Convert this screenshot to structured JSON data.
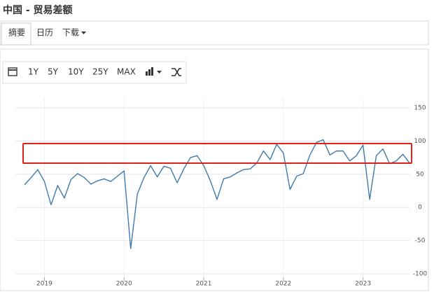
{
  "header": {
    "title": "中国 - 贸易差额"
  },
  "tabs": [
    "摘要",
    "日历",
    "下载"
  ],
  "toolbar": [
    "1Y",
    "5Y",
    "10Y",
    "25Y",
    "MAX"
  ],
  "chart_data": {
    "type": "line",
    "categories": [
      null,
      null,
      null,
      "2019",
      null,
      null,
      null,
      null,
      null,
      null,
      null,
      null,
      null,
      null,
      null,
      "2020",
      null,
      null,
      null,
      null,
      null,
      null,
      null,
      null,
      null,
      null,
      null,
      "2021",
      null,
      null,
      null,
      null,
      null,
      null,
      null,
      null,
      null,
      null,
      null,
      "2022",
      null,
      null,
      null,
      null,
      null,
      null,
      null,
      null,
      null,
      null,
      null,
      "2023",
      null,
      null,
      null,
      null,
      null,
      null,
      null
    ],
    "series": [
      {
        "color": "#3d7aad",
        "values": [
          34,
          45,
          57,
          39,
          4,
          33,
          14,
          42,
          51,
          45,
          35,
          40,
          43,
          39,
          47,
          55,
          -62,
          20,
          45,
          63,
          46,
          62,
          59,
          37,
          58,
          75,
          78,
          63,
          40,
          12,
          43,
          46,
          52,
          57,
          58,
          67,
          85,
          72,
          95,
          82,
          27,
          47,
          51,
          79,
          98,
          102,
          79,
          85,
          85,
          70,
          78,
          94,
          12,
          78,
          88,
          66,
          70,
          80,
          67
        ]
      }
    ],
    "ylim": [
      -100,
      150
    ],
    "yticks": [
      -100,
      -50,
      0,
      50,
      100,
      150
    ],
    "grid": true
  }
}
